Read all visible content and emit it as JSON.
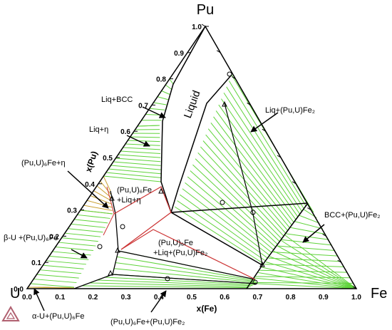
{
  "vertices": {
    "top": "Pu",
    "left": "U",
    "right": "Fe"
  },
  "axes": {
    "x_title": "x(Fe)",
    "y_title": "x(Pu)",
    "x_ticks": [
      "0.0",
      "0.1",
      "0.2",
      "0.3",
      "0.4",
      "0.5",
      "0.6",
      "0.7",
      "0.8",
      "0.9",
      "1.0"
    ],
    "y_ticks": [
      "0.0",
      "0.1",
      "0.2",
      "0.3",
      "0.4",
      "0.5",
      "0.6",
      "0.7",
      "0.8",
      "0.9",
      "1.0"
    ]
  },
  "regions": {
    "liquid": "Liquid",
    "liq_bcc": "Liq+BCC",
    "liq_eta": "Liq+η",
    "fe6_eta": "(Pu,U)₆Fe+η",
    "fe6_liq_eta": [
      "(Pu,U)₆Fe",
      "+Liq+η"
    ],
    "beta_u": "β-U +(Pu,U)₆Fe",
    "alpha_u": "α-U+(Pu,U)₆Fe",
    "fe6_fe2": "(Pu,U)₆Fe+(Pu,U)Fe₂",
    "fe6_liq_fe2": [
      "(Pu,U)₆Fe",
      "+Liq+(Pu,U)Fe₂"
    ],
    "liq_fe2": "Liq+(Pu,U)Fe₂",
    "bcc_fe2": "BCC+(Pu,U)Fe₂"
  }
}
